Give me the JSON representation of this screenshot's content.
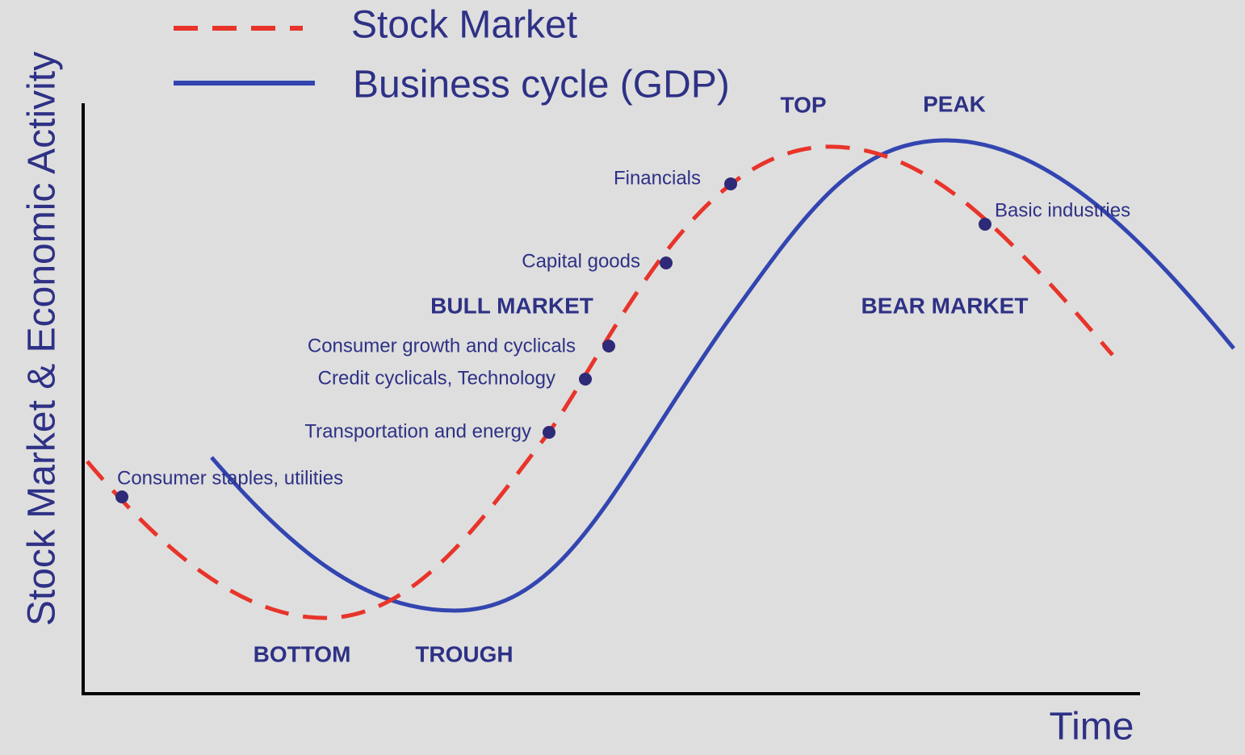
{
  "legend": [
    {
      "label": "Stock Market"
    },
    {
      "label": "Business cycle (GDP)"
    }
  ],
  "axes": {
    "y_label": "Stock Market & Economic Activity",
    "x_label": "Time"
  },
  "phases": [
    {
      "label": "TOP"
    },
    {
      "label": "PEAK"
    },
    {
      "label": "BULL MARKET"
    },
    {
      "label": "BEAR MARKET"
    },
    {
      "label": "BOTTOM"
    },
    {
      "label": "TROUGH"
    }
  ],
  "sectors": [
    {
      "label": "Consumer staples, utilities"
    },
    {
      "label": "Transportation and energy"
    },
    {
      "label": "Credit cyclicals, Technology"
    },
    {
      "label": "Consumer growth and cyclicals"
    },
    {
      "label": "Capital goods"
    },
    {
      "label": "Financials"
    },
    {
      "label": "Basic industries"
    }
  ]
}
